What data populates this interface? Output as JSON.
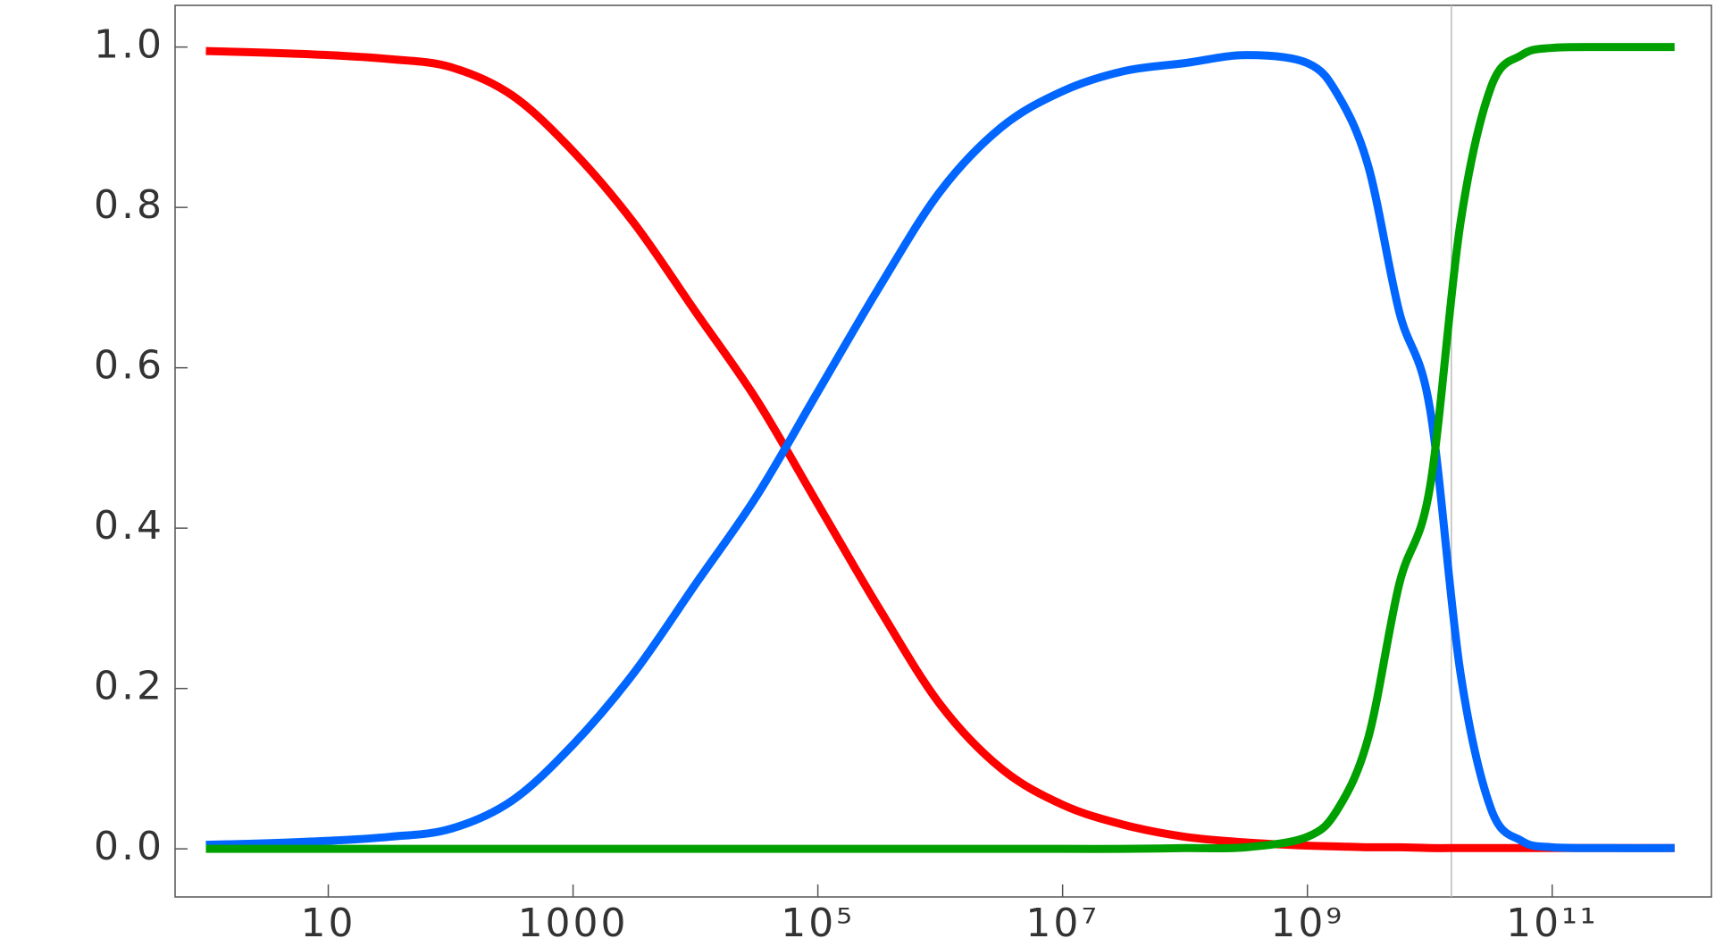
{
  "chart_data": {
    "type": "line",
    "x": [
      1,
      3.162,
      10,
      31.62,
      100,
      316.2,
      1000,
      3162,
      10000,
      31620,
      100000,
      316200,
      1000000,
      3162000,
      10000000,
      31620000,
      100000000,
      316200000,
      1000000000,
      1778000000,
      3162000000,
      5623000000,
      10000000000,
      17780000000,
      31620000000,
      56230000000,
      100000000000,
      316200000000,
      1000000000000
    ],
    "series": [
      {
        "color": "#ff0000",
        "values": [
          0.995,
          0.993,
          0.99,
          0.985,
          0.975,
          0.94,
          0.87,
          0.78,
          0.67,
          0.56,
          0.43,
          0.3,
          0.18,
          0.1,
          0.055,
          0.03,
          0.015,
          0.008,
          0.004,
          0.003,
          0.002,
          0.002,
          0.001,
          0.001,
          0.001,
          0.001,
          0.001,
          0.001,
          0.001
        ]
      },
      {
        "color": "#0066ff",
        "values": [
          0.005,
          0.007,
          0.01,
          0.015,
          0.025,
          0.06,
          0.13,
          0.22,
          0.33,
          0.44,
          0.57,
          0.7,
          0.82,
          0.9,
          0.945,
          0.97,
          0.98,
          0.99,
          0.98,
          0.94,
          0.85,
          0.67,
          0.55,
          0.22,
          0.05,
          0.01,
          0.002,
          0.001,
          0.001
        ]
      },
      {
        "color": "#00a000",
        "values": [
          0,
          0,
          0,
          0,
          0,
          0,
          0,
          0,
          0,
          0,
          0,
          0,
          0,
          0,
          0,
          0,
          0.001,
          0.002,
          0.015,
          0.05,
          0.14,
          0.33,
          0.45,
          0.78,
          0.95,
          0.99,
          0.999,
          1,
          1
        ]
      }
    ],
    "xscale": "log",
    "xlim": [
      0.56,
      2000000000000
    ],
    "xticks": [
      10,
      1000,
      {
        "value": 100000,
        "label": "10⁵"
      },
      {
        "value": 10000000,
        "label": "10⁷"
      },
      {
        "value": 1000000000,
        "label": "10⁹"
      },
      {
        "value": 100000000000,
        "label": "10¹¹"
      }
    ],
    "ylim": [
      -0.06,
      1.052
    ],
    "yticks": [
      {
        "value": 0,
        "label": "0.0"
      },
      0.2,
      0.4,
      0.6,
      0.8,
      {
        "value": 1,
        "label": "1.0"
      }
    ],
    "vline_x": 15000000000,
    "grid": false
  }
}
